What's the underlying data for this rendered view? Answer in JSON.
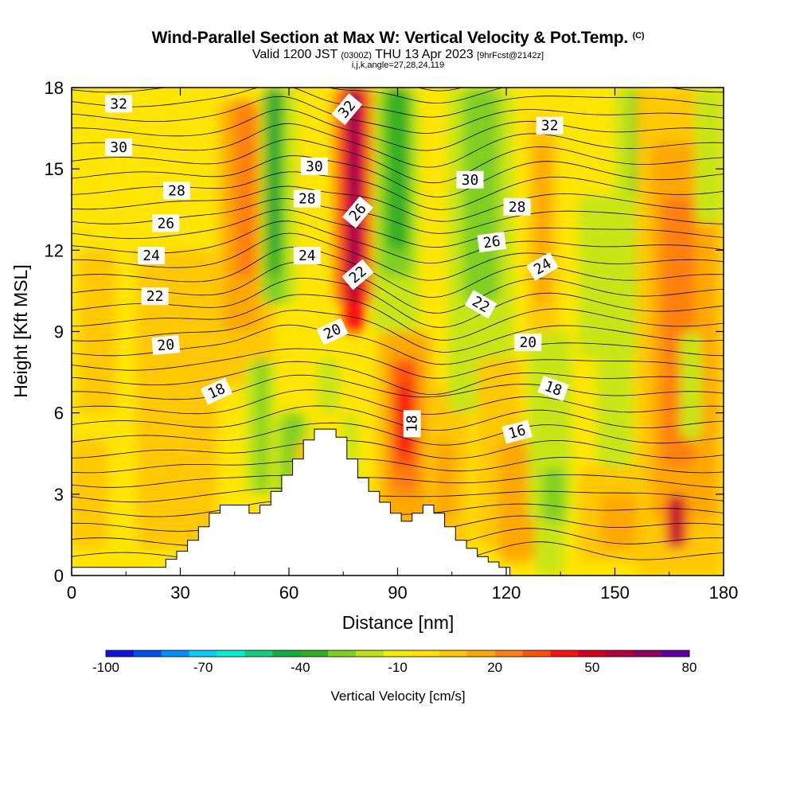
{
  "header": {
    "title": "Wind-Parallel Section at Max W: Vertical Velocity & Pot.Temp.",
    "copyright": "(C)",
    "valid_prefix": "Valid 1200 JST",
    "valid_zulu": "(0300Z)",
    "valid_date": "THU 13 Apr 2023",
    "forecast": "[9hrFcst@2142z]",
    "indices": "i,j,k,angle=27,28,24,119"
  },
  "chart_data": {
    "type": "heatmap",
    "xlabel": "Distance [nm]",
    "ylabel": "Height [Kft MSL]",
    "xlim": [
      0,
      180
    ],
    "ylim": [
      0,
      18
    ],
    "x_ticks": [
      "0",
      "30",
      "60",
      "90",
      "120",
      "150",
      "180"
    ],
    "y_ticks": [
      "0",
      "3",
      "6",
      "9",
      "12",
      "15",
      "18"
    ],
    "x_tick_values": [
      0,
      30,
      60,
      90,
      120,
      150,
      180
    ],
    "y_tick_values": [
      0,
      3,
      6,
      9,
      12,
      15,
      18
    ],
    "colorbar": {
      "label": "Vertical Velocity [cm/s]",
      "min": -100,
      "max": 80,
      "tick_labels": [
        "-100",
        "-70",
        "-40",
        "-10",
        "20",
        "50",
        "80"
      ],
      "tick_values": [
        -100,
        -70,
        -40,
        -10,
        20,
        50,
        80
      ],
      "colors": [
        "#1010e0",
        "#0050f0",
        "#0090ff",
        "#00d0f8",
        "#00f0d0",
        "#10d080",
        "#10b040",
        "#30b020",
        "#80d020",
        "#c0e010",
        "#f0f000",
        "#ffe000",
        "#ffc800",
        "#ffa800",
        "#ff8010",
        "#ff5010",
        "#ff1010",
        "#d80020",
        "#b00040",
        "#900060",
        "#6000a0"
      ]
    },
    "terrain": {
      "x": [
        0,
        26,
        26,
        29,
        29,
        32,
        32,
        35,
        35,
        38,
        38,
        41,
        41,
        49,
        49,
        52,
        52,
        55,
        55,
        58,
        58,
        61,
        61,
        64,
        64,
        67,
        67,
        73,
        73,
        76,
        76,
        79,
        79,
        82,
        82,
        85,
        85,
        88,
        88,
        91,
        91,
        94,
        94,
        97,
        97,
        100,
        100,
        103,
        103,
        106,
        106,
        109,
        109,
        112,
        112,
        115,
        115,
        118,
        118,
        121,
        121,
        124,
        124,
        180
      ],
      "y": [
        0.3,
        0.3,
        0.6,
        0.6,
        0.9,
        0.9,
        1.3,
        1.3,
        1.8,
        1.8,
        2.3,
        2.3,
        2.6,
        2.6,
        2.3,
        2.3,
        2.6,
        2.6,
        3.1,
        3.1,
        3.7,
        3.7,
        4.3,
        4.3,
        5.0,
        5.0,
        5.4,
        5.4,
        5.1,
        5.1,
        4.3,
        4.3,
        3.6,
        3.6,
        3.1,
        3.1,
        2.7,
        2.7,
        2.3,
        2.3,
        2.0,
        2.0,
        2.3,
        2.3,
        2.6,
        2.6,
        2.3,
        2.3,
        1.8,
        1.8,
        1.3,
        1.3,
        1.0,
        1.0,
        0.7,
        0.7,
        0.5,
        0.5,
        0.3,
        0.3,
        0.0,
        0.0,
        0.0,
        0.0
      ]
    },
    "contour_labels": [
      {
        "text": "32",
        "x": 13,
        "y": 17.4,
        "rot": 0
      },
      {
        "text": "30",
        "x": 13,
        "y": 15.8,
        "rot": 0
      },
      {
        "text": "28",
        "x": 29,
        "y": 14.2,
        "rot": 0
      },
      {
        "text": "26",
        "x": 26,
        "y": 13.0,
        "rot": 0
      },
      {
        "text": "24",
        "x": 22,
        "y": 11.8,
        "rot": 0
      },
      {
        "text": "22",
        "x": 23,
        "y": 10.3,
        "rot": 0
      },
      {
        "text": "20",
        "x": 26,
        "y": 8.5,
        "rot": -5
      },
      {
        "text": "18",
        "x": 40,
        "y": 6.8,
        "rot": -25
      },
      {
        "text": "30",
        "x": 67,
        "y": 15.1,
        "rot": 0
      },
      {
        "text": "28",
        "x": 65,
        "y": 13.9,
        "rot": 0
      },
      {
        "text": "24",
        "x": 65,
        "y": 11.8,
        "rot": 0
      },
      {
        "text": "20",
        "x": 72,
        "y": 9.0,
        "rot": -25
      },
      {
        "text": "32",
        "x": 76,
        "y": 17.2,
        "rot": -50
      },
      {
        "text": "26",
        "x": 79,
        "y": 13.4,
        "rot": -50
      },
      {
        "text": "22",
        "x": 79,
        "y": 11.1,
        "rot": -40
      },
      {
        "text": "18",
        "x": 94,
        "y": 5.6,
        "rot": -90
      },
      {
        "text": "30",
        "x": 110,
        "y": 14.6,
        "rot": 0
      },
      {
        "text": "32",
        "x": 132,
        "y": 16.6,
        "rot": 0
      },
      {
        "text": "28",
        "x": 123,
        "y": 13.6,
        "rot": 0
      },
      {
        "text": "26",
        "x": 116,
        "y": 12.3,
        "rot": -8
      },
      {
        "text": "24",
        "x": 130,
        "y": 11.4,
        "rot": -30
      },
      {
        "text": "22",
        "x": 113,
        "y": 10.0,
        "rot": 30
      },
      {
        "text": "20",
        "x": 126,
        "y": 8.6,
        "rot": 0
      },
      {
        "text": "18",
        "x": 133,
        "y": 6.9,
        "rot": 20
      },
      {
        "text": "16",
        "x": 123,
        "y": 5.3,
        "rot": -15
      }
    ]
  }
}
